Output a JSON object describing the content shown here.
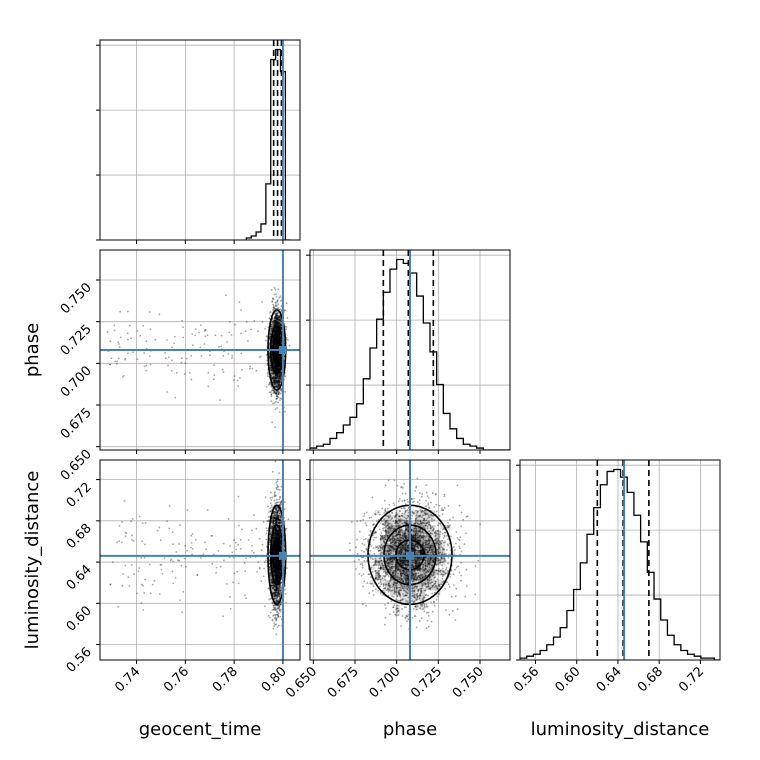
{
  "chart_data": {
    "type": "corner",
    "parameters": [
      "geocent_time",
      "phase",
      "luminosity_distance"
    ],
    "truths": {
      "geocent_time": 0.8,
      "phase": 0.708,
      "luminosity_distance": 0.646
    },
    "ranges": {
      "geocent_time": [
        0.725,
        0.807
      ],
      "phase": [
        0.648,
        0.768
      ],
      "luminosity_distance": [
        0.545,
        0.739
      ]
    },
    "quantiles": {
      "geocent_time": [
        0.7962,
        0.7978,
        0.7994
      ],
      "phase": [
        0.692,
        0.707,
        0.722
      ],
      "luminosity_distance": [
        0.62,
        0.645,
        0.67
      ]
    },
    "histograms": {
      "geocent_time": {
        "edges": [
          0.785,
          0.787,
          0.789,
          0.791,
          0.793,
          0.795,
          0.797,
          0.799,
          0.801,
          0.803
        ],
        "counts": [
          1,
          2,
          4,
          8,
          28,
          90,
          95,
          84,
          0
        ]
      },
      "phase": {
        "edges": [
          0.648,
          0.652,
          0.656,
          0.66,
          0.664,
          0.668,
          0.672,
          0.676,
          0.68,
          0.684,
          0.688,
          0.692,
          0.696,
          0.7,
          0.704,
          0.708,
          0.712,
          0.716,
          0.72,
          0.724,
          0.728,
          0.732,
          0.736,
          0.74,
          0.744,
          0.748,
          0.752,
          0.756,
          0.76,
          0.764,
          0.768
        ],
        "counts": [
          1,
          2,
          3,
          6,
          9,
          13,
          17,
          24,
          37,
          53,
          68,
          82,
          94,
          99,
          97,
          92,
          80,
          66,
          51,
          34,
          19,
          11,
          6,
          3,
          2,
          1,
          0,
          0,
          0,
          0
        ]
      },
      "luminosity_distance": {
        "edges": [
          0.545,
          0.5515,
          0.558,
          0.5645,
          0.571,
          0.5775,
          0.584,
          0.5905,
          0.597,
          0.6035,
          0.61,
          0.6165,
          0.623,
          0.6295,
          0.636,
          0.6425,
          0.649,
          0.6555,
          0.662,
          0.6685,
          0.675,
          0.6815,
          0.688,
          0.6945,
          0.701,
          0.7075,
          0.714,
          0.7205,
          0.727,
          0.7335,
          0.74
        ],
        "counts": [
          1,
          2,
          3,
          5,
          8,
          12,
          17,
          26,
          37,
          51,
          66,
          80,
          92,
          99,
          100,
          96,
          88,
          76,
          62,
          46,
          32,
          21,
          13,
          8,
          5,
          3,
          2,
          1,
          1,
          0
        ]
      }
    },
    "ticks": {
      "geocent_time": [
        0.74,
        0.76,
        0.78,
        0.8
      ],
      "geocent_time_labels": [
        "0.74",
        "0.76",
        "0.78",
        "0.80"
      ],
      "phase": [
        0.65,
        0.675,
        0.7,
        0.725,
        0.75
      ],
      "phase_labels": [
        "0.650",
        "0.675",
        "0.700",
        "0.725",
        "0.750"
      ],
      "luminosity_distance": [
        0.56,
        0.6,
        0.64,
        0.68,
        0.72
      ],
      "luminosity_distance_labels": [
        "0.56",
        "0.60",
        "0.64",
        "0.68",
        "0.72"
      ]
    },
    "samples_2d": {
      "geocent_time_center": 0.7975,
      "geocent_time_core_sd": 0.0014,
      "geocent_time_tail_min": 0.728,
      "phase_center": 0.708,
      "phase_sd": 0.012,
      "luminosity_distance_center": 0.647,
      "luminosity_distance_sd": 0.024
    },
    "grid": true,
    "colors": {
      "truth": "#4682b4",
      "hist": "#000000",
      "grid": "#b0b0b0",
      "frame": "#000000"
    }
  }
}
